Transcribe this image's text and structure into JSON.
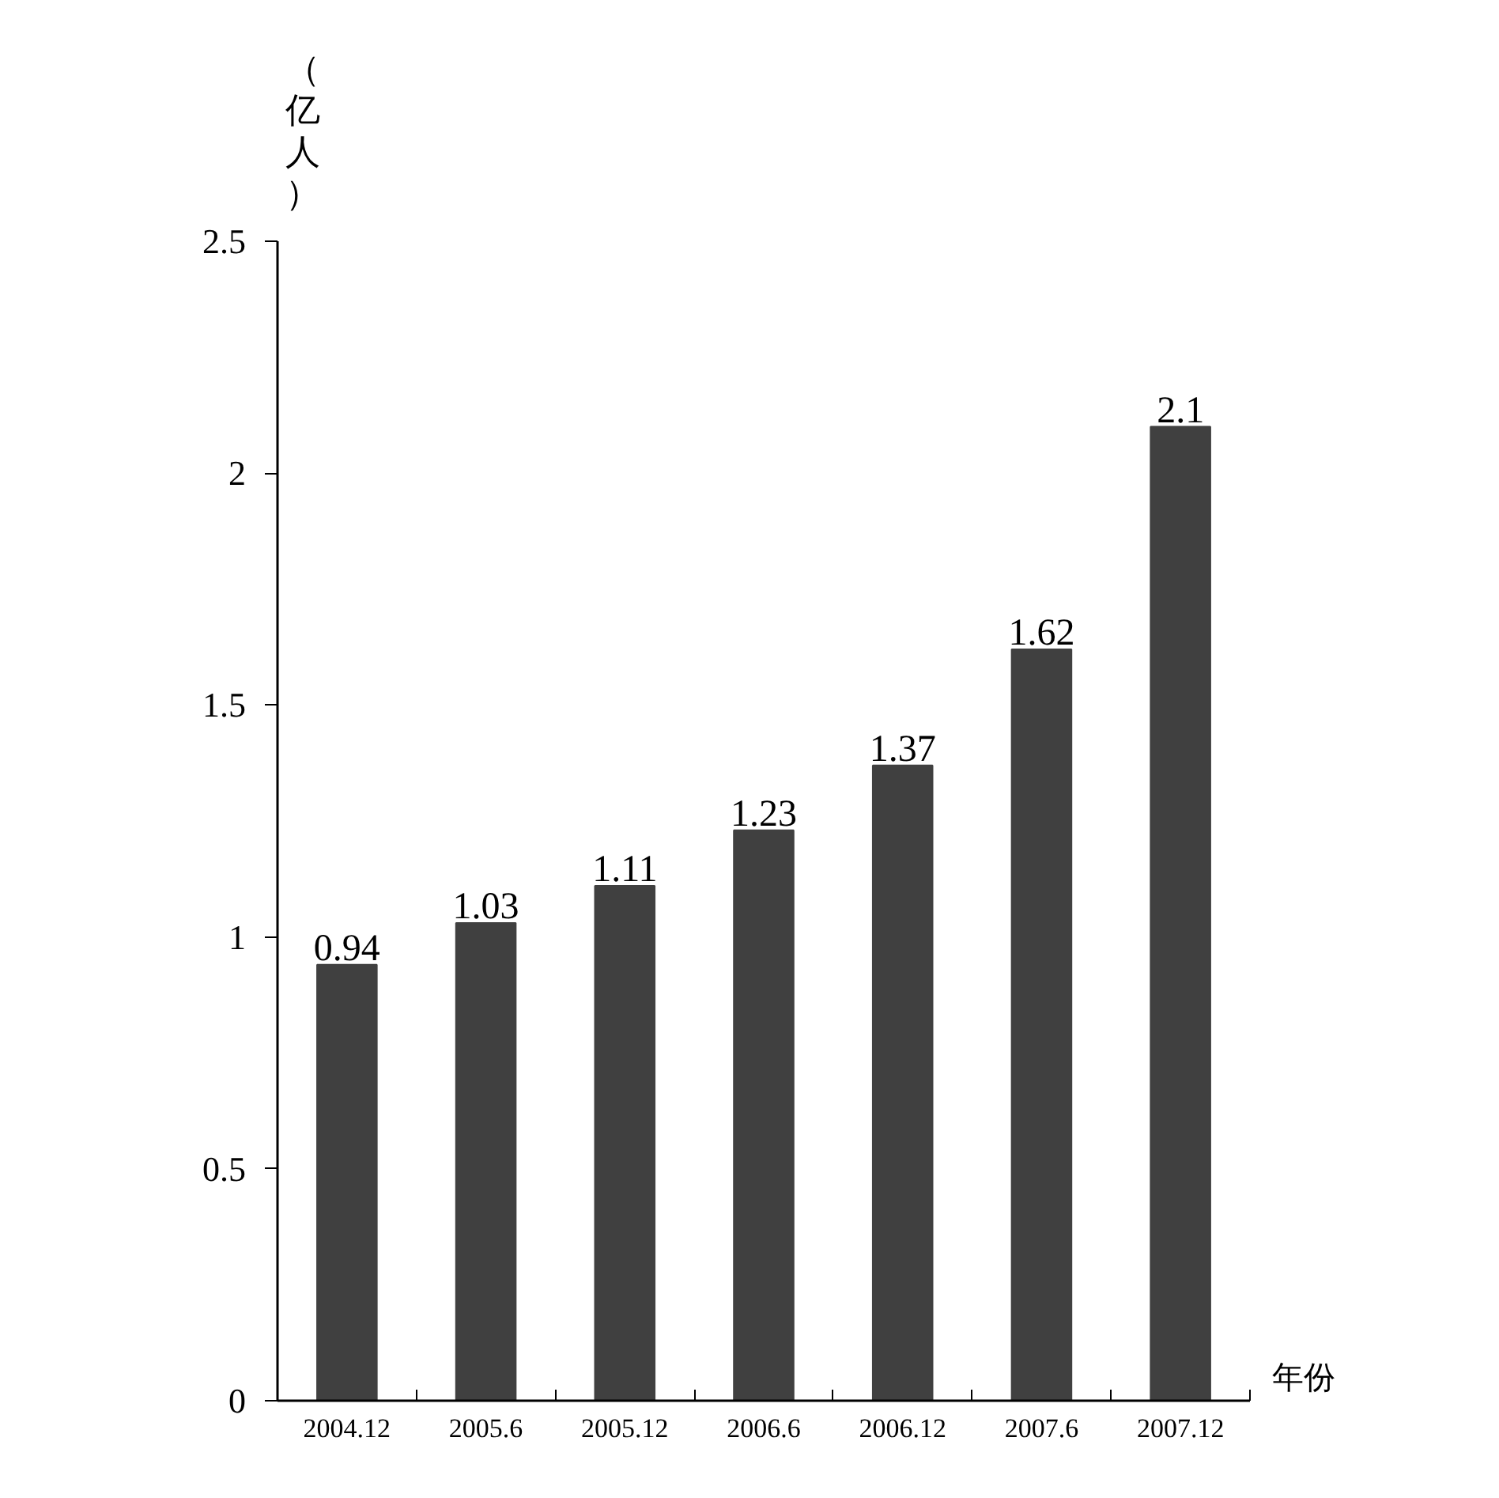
{
  "chart_data": {
    "type": "bar",
    "ylabel": "（亿人）",
    "xlabel": "年份",
    "categories": [
      "2004.12",
      "2005.6",
      "2005.12",
      "2006.6",
      "2006.12",
      "2007.6",
      "2007.12"
    ],
    "values": [
      0.94,
      1.03,
      1.11,
      1.23,
      1.37,
      1.62,
      2.1
    ],
    "color": "#404040",
    "ylim": [
      0,
      2.5
    ],
    "yticks": [
      0,
      0.5,
      1,
      1.5,
      2,
      2.5
    ],
    "data_labels": true,
    "grid": false
  }
}
